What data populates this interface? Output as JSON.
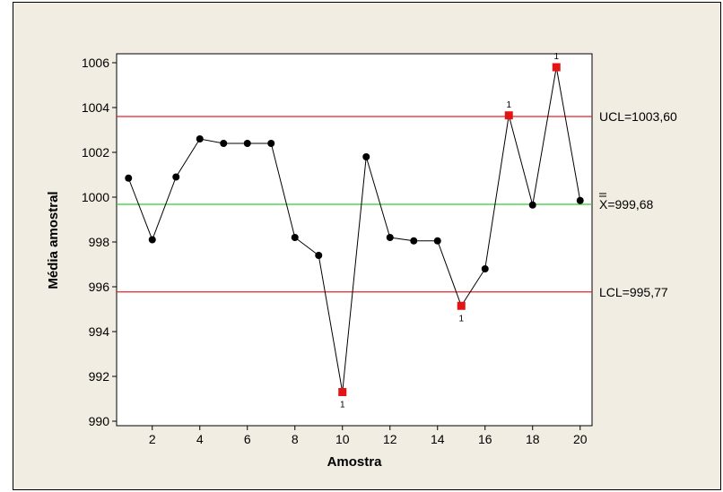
{
  "chart_data": {
    "type": "line",
    "title": "",
    "xlabel": "Amostra",
    "ylabel": "Média amostral",
    "xlim": [
      0.5,
      20.5
    ],
    "ylim": [
      989.8,
      1006.4
    ],
    "xticks": [
      2,
      4,
      6,
      8,
      10,
      12,
      14,
      16,
      18,
      20
    ],
    "yticks": [
      990,
      992,
      994,
      996,
      998,
      1000,
      1002,
      1004,
      1006
    ],
    "x": [
      1,
      2,
      3,
      4,
      5,
      6,
      7,
      8,
      9,
      10,
      11,
      12,
      13,
      14,
      15,
      16,
      17,
      18,
      19,
      20
    ],
    "values": [
      1000.85,
      998.1,
      1000.9,
      1002.6,
      1002.4,
      1002.4,
      1002.4,
      998.2,
      997.4,
      991.3,
      1001.8,
      998.2,
      998.05,
      998.05,
      995.15,
      996.8,
      1003.65,
      999.65,
      1005.8,
      999.85
    ],
    "out_of_control": [
      {
        "x": 10,
        "label": "1",
        "position": "below"
      },
      {
        "x": 15,
        "label": "1",
        "position": "below"
      },
      {
        "x": 17,
        "label": "1",
        "position": "above"
      },
      {
        "x": 19,
        "label": "1",
        "position": "above"
      }
    ],
    "reference_lines": [
      {
        "name": "UCL",
        "value": 1003.6,
        "label": "UCL=1003,60",
        "color": "#e8202a"
      },
      {
        "name": "center",
        "value": 999.68,
        "label": "X=999,68",
        "color": "#33cc33"
      },
      {
        "name": "LCL",
        "value": 995.77,
        "label": "LCL=995,77",
        "color": "#e8202a"
      }
    ],
    "colors": {
      "line": "#000000",
      "point": "#000000",
      "flagged_point": "#e21414"
    },
    "grid": false
  }
}
